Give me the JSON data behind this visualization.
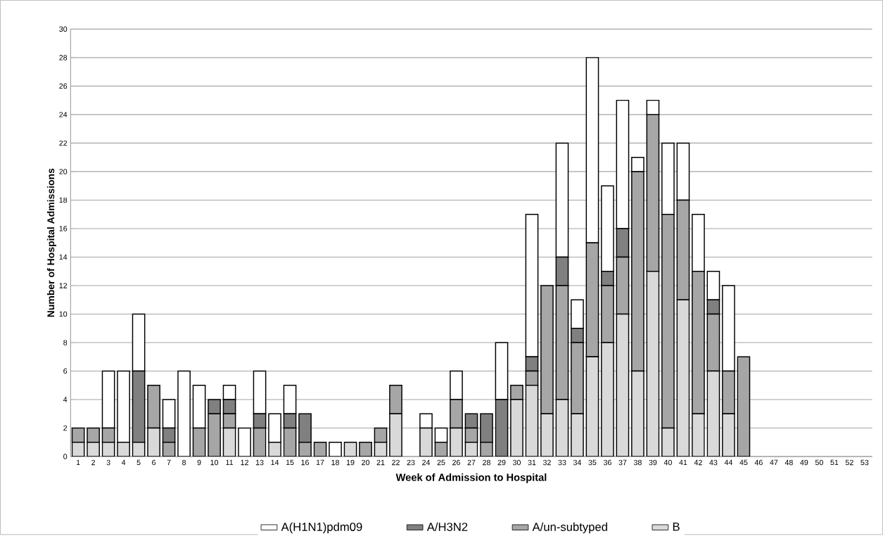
{
  "chart_data": {
    "type": "bar",
    "stacked": true,
    "xlabel": "Week of Admission to Hospital",
    "ylabel": "Number of Hospital Admissions",
    "categories": [
      "1",
      "2",
      "3",
      "4",
      "5",
      "6",
      "7",
      "8",
      "9",
      "10",
      "11",
      "12",
      "13",
      "14",
      "15",
      "16",
      "17",
      "18",
      "19",
      "20",
      "21",
      "22",
      "23",
      "24",
      "25",
      "26",
      "27",
      "28",
      "29",
      "30",
      "31",
      "32",
      "33",
      "34",
      "35",
      "36",
      "37",
      "38",
      "39",
      "40",
      "41",
      "42",
      "43",
      "44",
      "45",
      "46",
      "47",
      "48",
      "49",
      "50",
      "51",
      "52",
      "53"
    ],
    "series": [
      {
        "name": "B",
        "color": "#d9d9d9",
        "values": [
          1,
          1,
          1,
          1,
          1,
          2,
          0,
          0,
          0,
          0,
          2,
          0,
          0,
          1,
          0,
          0,
          0,
          0,
          1,
          0,
          1,
          3,
          0,
          2,
          0,
          2,
          1,
          0,
          0,
          4,
          5,
          3,
          4,
          3,
          7,
          8,
          10,
          6,
          13,
          2,
          11,
          3,
          6,
          3,
          0,
          0,
          0,
          0,
          0,
          0,
          0,
          0,
          0
        ]
      },
      {
        "name": "A/un-subtyped",
        "color": "#a6a6a6",
        "values": [
          1,
          1,
          1,
          0,
          0,
          3,
          1,
          0,
          2,
          3,
          1,
          0,
          2,
          0,
          2,
          1,
          1,
          0,
          0,
          1,
          1,
          2,
          0,
          0,
          1,
          2,
          1,
          1,
          0,
          1,
          1,
          9,
          8,
          5,
          8,
          4,
          4,
          14,
          11,
          15,
          7,
          10,
          4,
          3,
          7,
          0,
          0,
          0,
          0,
          0,
          0,
          0,
          0
        ]
      },
      {
        "name": "A/H3N2",
        "color": "#808080",
        "values": [
          0,
          0,
          0,
          0,
          5,
          0,
          1,
          0,
          0,
          1,
          1,
          0,
          1,
          0,
          1,
          2,
          0,
          0,
          0,
          0,
          0,
          0,
          0,
          0,
          0,
          0,
          1,
          2,
          4,
          0,
          1,
          0,
          2,
          1,
          0,
          1,
          2,
          0,
          0,
          0,
          0,
          0,
          1,
          0,
          0,
          0,
          0,
          0,
          0,
          0,
          0,
          0,
          0
        ]
      },
      {
        "name": "A(H1N1)pdm09",
        "color": "#ffffff",
        "values": [
          0,
          0,
          4,
          5,
          4,
          0,
          2,
          6,
          3,
          0,
          1,
          2,
          3,
          2,
          2,
          0,
          0,
          1,
          0,
          0,
          0,
          0,
          0,
          1,
          1,
          2,
          0,
          0,
          4,
          0,
          10,
          0,
          8,
          2,
          13,
          6,
          9,
          1,
          1,
          5,
          4,
          4,
          2,
          6,
          0,
          0,
          0,
          0,
          0,
          0,
          0,
          0,
          0
        ]
      }
    ],
    "ylim": [
      0,
      30
    ],
    "yticks": [
      0,
      2,
      4,
      6,
      8,
      10,
      12,
      14,
      16,
      18,
      20,
      22,
      24,
      26,
      28,
      30
    ],
    "grid": "y",
    "legend": "bottom"
  }
}
